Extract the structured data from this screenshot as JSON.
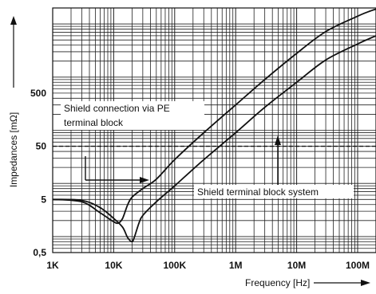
{
  "chart_data": {
    "type": "line",
    "xlabel": "Frequency [Hz]",
    "ylabel": "Impedances [mΩ]",
    "x_scale": "log",
    "y_scale": "log",
    "xlim": [
      1000,
      200000000
    ],
    "ylim": [
      0.5,
      20000
    ],
    "x_ticks": [
      {
        "value": 1000,
        "label": "1K"
      },
      {
        "value": 10000,
        "label": "10K"
      },
      {
        "value": 100000,
        "label": "100K"
      },
      {
        "value": 1000000,
        "label": "1M"
      },
      {
        "value": 10000000,
        "label": "10M"
      },
      {
        "value": 100000000,
        "label": "100M"
      }
    ],
    "y_ticks": [
      {
        "value": 0.5,
        "label": "0,5"
      },
      {
        "value": 5,
        "label": "5"
      },
      {
        "value": 50,
        "label": "50"
      },
      {
        "value": 500,
        "label": "500"
      }
    ],
    "grid": true,
    "reference_line": {
      "value": 50,
      "style": "dashed"
    },
    "series": [
      {
        "name": "Shield connection via PE terminal block",
        "x": [
          1000,
          3000,
          6000,
          10000,
          12000,
          14000,
          17000,
          20000,
          30000,
          50000,
          100000,
          300000,
          1000000,
          3000000,
          10000000,
          30000000,
          100000000,
          150000000,
          200000000
        ],
        "y": [
          5,
          4.5,
          2.8,
          1.9,
          1.8,
          2.2,
          4,
          5.5,
          8,
          12,
          28,
          90,
          300,
          900,
          2800,
          7200,
          14000,
          17000,
          19000
        ]
      },
      {
        "name": "Shield terminal block system",
        "x": [
          1000,
          3000,
          6000,
          10000,
          14000,
          17000,
          20000,
          22000,
          26000,
          30000,
          50000,
          100000,
          300000,
          1000000,
          3000000,
          10000000,
          30000000,
          100000000,
          150000000,
          200000000
        ],
        "y": [
          5,
          4.8,
          3.5,
          2.2,
          1.5,
          0.95,
          0.8,
          1.0,
          1.8,
          2.5,
          4.5,
          9,
          28,
          90,
          270,
          800,
          2100,
          4200,
          5200,
          6000
        ]
      }
    ],
    "annotations": [
      {
        "lines": [
          "Shield connection via PE",
          "terminal block"
        ]
      },
      {
        "lines": [
          "Shield terminal block system"
        ]
      }
    ]
  }
}
